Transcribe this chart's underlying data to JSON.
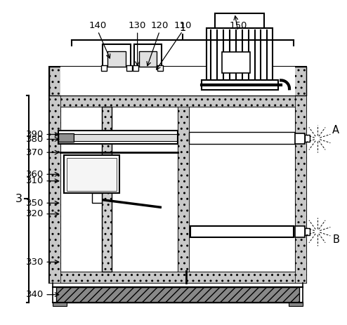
{
  "background_color": "#ffffff",
  "line_color": "#000000",
  "hatch_color": "#aaaaaa",
  "labels_top": [
    "140",
    "130",
    "120",
    "110",
    "150"
  ],
  "labels_left": [
    "390",
    "380",
    "370",
    "360",
    "350",
    "310",
    "320",
    "330",
    "340"
  ],
  "label_1": "1",
  "label_3": "3",
  "label_A": "A",
  "label_B": "B"
}
